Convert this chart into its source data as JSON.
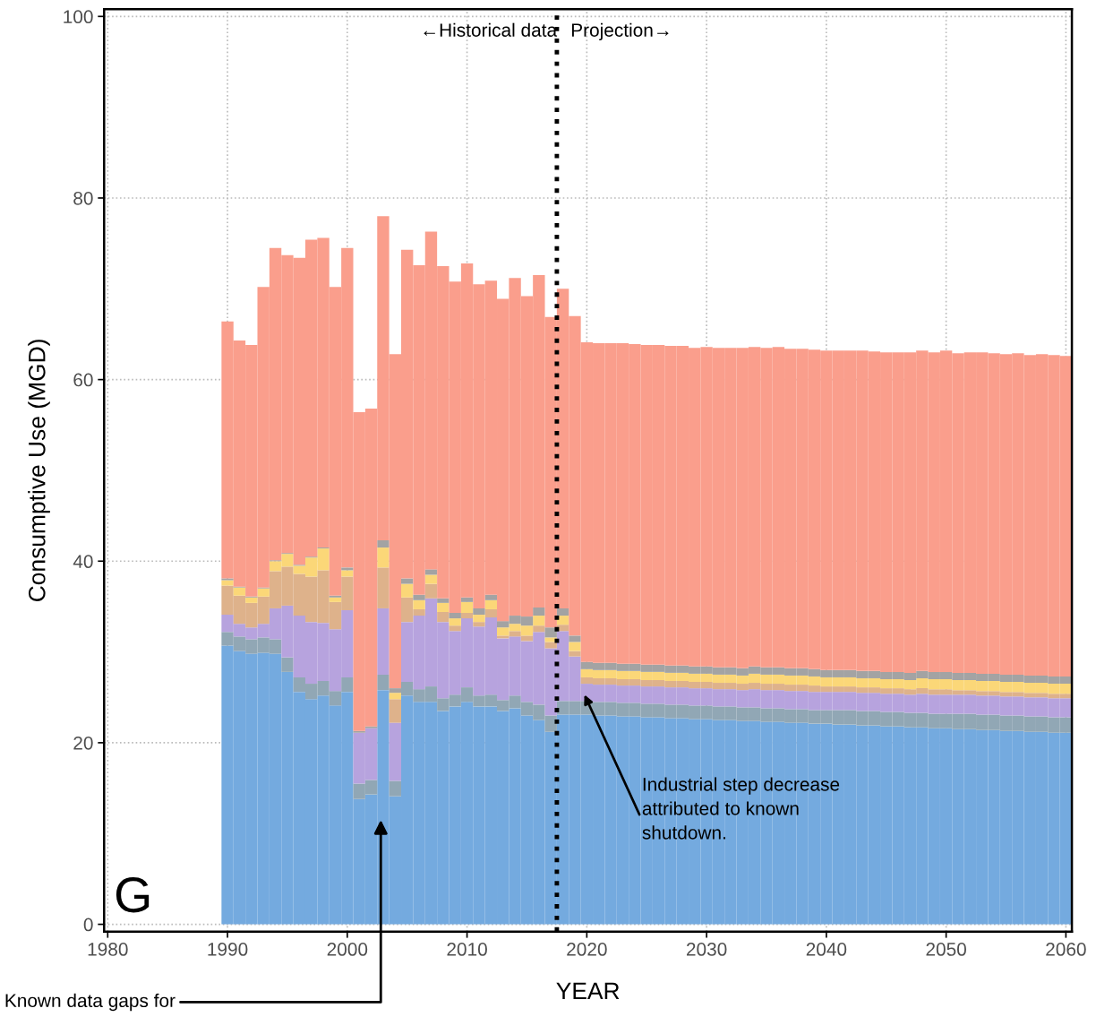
{
  "chart_data": {
    "type": "bar",
    "stacked": true,
    "xlabel": "YEAR",
    "ylabel": "Consumptive Use (MGD)",
    "x": [
      1990,
      1991,
      1992,
      1993,
      1994,
      1995,
      1996,
      1997,
      1998,
      1999,
      2000,
      2001,
      2002,
      2003,
      2004,
      2005,
      2006,
      2007,
      2008,
      2009,
      2010,
      2011,
      2012,
      2013,
      2014,
      2015,
      2016,
      2017,
      2018,
      2019,
      2020,
      2021,
      2022,
      2023,
      2024,
      2025,
      2026,
      2027,
      2028,
      2029,
      2030,
      2031,
      2032,
      2033,
      2034,
      2035,
      2036,
      2037,
      2038,
      2039,
      2040,
      2041,
      2042,
      2043,
      2044,
      2045,
      2046,
      2047,
      2048,
      2049,
      2050,
      2051,
      2052,
      2053,
      2054,
      2055,
      2056,
      2057,
      2058,
      2059,
      2060
    ],
    "series": [
      {
        "color": "#74aadf",
        "values": [
          30.7,
          30.1,
          29.8,
          29.9,
          29.8,
          27.8,
          25.6,
          24.8,
          25.2,
          24.1,
          25.6,
          13.8,
          14.3,
          25.8,
          14.1,
          25.2,
          24.5,
          24.5,
          23.5,
          24.0,
          24.5,
          24.0,
          24.0,
          23.5,
          23.8,
          23.0,
          22.5,
          21.2,
          23.1,
          23.1,
          23.1,
          23.0,
          23.0,
          22.9,
          22.9,
          22.8,
          22.8,
          22.7,
          22.7,
          22.6,
          22.6,
          22.5,
          22.5,
          22.4,
          22.4,
          22.3,
          22.3,
          22.2,
          22.2,
          22.1,
          22.1,
          22.0,
          22.0,
          21.9,
          21.9,
          21.8,
          21.8,
          21.7,
          21.7,
          21.6,
          21.6,
          21.5,
          21.5,
          21.4,
          21.4,
          21.3,
          21.3,
          21.2,
          21.2,
          21.1,
          21.1
        ]
      },
      {
        "color": "#91a7b5",
        "values": [
          1.5,
          1.6,
          1.6,
          1.7,
          1.6,
          1.6,
          1.6,
          1.7,
          1.6,
          1.6,
          1.6,
          1.7,
          1.6,
          1.7,
          1.7,
          1.5,
          1.4,
          1.7,
          1.4,
          1.3,
          1.6,
          1.2,
          1.3,
          1.2,
          1.4,
          1.5,
          1.7,
          1.8,
          1.5,
          1.5,
          1.5,
          1.5,
          1.5,
          1.5,
          1.5,
          1.5,
          1.5,
          1.5,
          1.5,
          1.5,
          1.5,
          1.5,
          1.5,
          1.5,
          1.5,
          1.5,
          1.5,
          1.5,
          1.5,
          1.5,
          1.5,
          1.6,
          1.6,
          1.6,
          1.6,
          1.6,
          1.6,
          1.6,
          1.6,
          1.6,
          1.6,
          1.7,
          1.7,
          1.7,
          1.7,
          1.7,
          1.7,
          1.7,
          1.7,
          1.7,
          1.7
        ]
      },
      {
        "color": "#b7a3de",
        "values": [
          1.9,
          1.4,
          1.3,
          1.5,
          3.4,
          5.7,
          6.8,
          6.8,
          6.4,
          6.8,
          7.4,
          5.6,
          5.7,
          7.3,
          6.4,
          6.6,
          8.1,
          9.7,
          8.4,
          7.0,
          7.6,
          7.6,
          8.5,
          6.8,
          6.5,
          6.7,
          8.0,
          7.4,
          7.7,
          4.9,
          1.9,
          1.9,
          1.9,
          1.9,
          1.9,
          1.9,
          1.9,
          1.9,
          1.9,
          1.9,
          1.9,
          1.9,
          1.9,
          1.9,
          2.0,
          2.0,
          2.0,
          2.0,
          2.0,
          2.0,
          2.0,
          2.0,
          2.0,
          2.0,
          2.0,
          2.0,
          2.0,
          2.0,
          2.1,
          2.1,
          2.1,
          2.1,
          2.1,
          2.1,
          2.1,
          2.1,
          2.1,
          2.1,
          2.1,
          2.1,
          2.1
        ]
      },
      {
        "color": "#deb28b",
        "values": [
          3.2,
          3.1,
          2.7,
          3.0,
          4.1,
          4.3,
          4.6,
          5.0,
          5.8,
          3.0,
          3.7,
          0,
          0,
          4.5,
          2.6,
          2.7,
          0.7,
          1.6,
          1.1,
          0.6,
          0.6,
          0.5,
          0.9,
          0.3,
          0.6,
          0.6,
          0.7,
          0.7,
          0.7,
          0.6,
          0.7,
          0.7,
          0.7,
          0.7,
          0.7,
          0.7,
          0.7,
          0.7,
          0.7,
          0.7,
          0.7,
          0.7,
          0.7,
          0.7,
          0.7,
          0.7,
          0.7,
          0.7,
          0.7,
          0.7,
          0.6,
          0.6,
          0.6,
          0.6,
          0.6,
          0.6,
          0.6,
          0.6,
          0.6,
          0.6,
          0.6,
          0.5,
          0.5,
          0.5,
          0.5,
          0.5,
          0.5,
          0.5,
          0.5,
          0.5,
          0.5
        ]
      },
      {
        "color": "#fbd778",
        "values": [
          0.6,
          0.9,
          0.6,
          0.9,
          1.1,
          1.4,
          0.9,
          2.1,
          2.4,
          0.5,
          0.7,
          0,
          0,
          2.2,
          0.7,
          1.5,
          1.0,
          1.0,
          1.0,
          0.8,
          1.2,
          0.8,
          1.0,
          0.9,
          0.8,
          1.1,
          1.1,
          0.5,
          1.0,
          1.0,
          0.9,
          0.9,
          0.9,
          0.9,
          0.9,
          0.9,
          0.9,
          0.9,
          0.9,
          0.9,
          0.9,
          0.9,
          0.9,
          0.9,
          1.0,
          1.0,
          1.0,
          1.0,
          1.0,
          1.0,
          1.0,
          1.0,
          1.0,
          1.0,
          1.0,
          1.0,
          1.0,
          1.0,
          1.1,
          1.1,
          1.1,
          1.1,
          1.1,
          1.1,
          1.1,
          1.1,
          1.1,
          1.1,
          1.1,
          1.1,
          1.1
        ]
      },
      {
        "color": "#a3a3a3",
        "values": [
          0.2,
          0.1,
          0.1,
          0.1,
          0.1,
          0.1,
          0.1,
          0.1,
          0.1,
          0.2,
          0.3,
          0.2,
          0.2,
          0.8,
          0.5,
          0.6,
          0.6,
          0.6,
          0.5,
          0.6,
          0.5,
          0.7,
          0.6,
          0.7,
          0.9,
          1.0,
          0.9,
          1.1,
          0.8,
          0.7,
          0.8,
          0.8,
          0.8,
          0.8,
          0.8,
          0.8,
          0.8,
          0.8,
          0.8,
          0.8,
          0.8,
          0.8,
          0.8,
          0.8,
          0.8,
          0.8,
          0.8,
          0.8,
          0.8,
          0.8,
          0.8,
          0.8,
          0.8,
          0.8,
          0.8,
          0.8,
          0.8,
          0.8,
          0.8,
          0.8,
          0.8,
          0.8,
          0.8,
          0.8,
          0.8,
          0.8,
          0.8,
          0.8,
          0.8,
          0.8,
          0.8
        ]
      },
      {
        "color": "#fa9e8c",
        "values": [
          28.3,
          27.1,
          27.7,
          33.1,
          34.4,
          32.8,
          33.8,
          34.9,
          34.1,
          34.0,
          35.2,
          35.1,
          35.0,
          35.7,
          36.8,
          36.2,
          36.3,
          37.2,
          36.6,
          36.5,
          36.8,
          35.7,
          34.6,
          35.5,
          37.2,
          35.3,
          36.6,
          34.2,
          35.2,
          35.2,
          35.2,
          35.2,
          35.2,
          35.3,
          35.2,
          35.2,
          35.2,
          35.2,
          35.2,
          35.1,
          35.2,
          35.2,
          35.2,
          35.3,
          35.2,
          35.2,
          35.3,
          35.2,
          35.2,
          35.2,
          35.2,
          35.2,
          35.2,
          35.3,
          35.2,
          35.2,
          35.2,
          35.3,
          35.3,
          35.2,
          35.4,
          35.2,
          35.3,
          35.4,
          35.3,
          35.3,
          35.4,
          35.3,
          35.4,
          35.4,
          35.3
        ]
      }
    ],
    "xlim": [
      1979.7,
      2060.5
    ],
    "ylim": [
      -0.8,
      100.8
    ],
    "xticks": [
      1980,
      1990,
      2000,
      2010,
      2020,
      2030,
      2040,
      2050,
      2060
    ],
    "yticks": [
      0,
      20,
      40,
      60,
      80,
      100
    ],
    "grid": true,
    "ref_lines": [
      {
        "axis": "x",
        "value": 2017.5,
        "line_style": "dotted",
        "color": "#000000"
      }
    ],
    "annotations": [
      "←Historical data",
      "Projection→",
      "G",
      {
        "text": "Industrial step decrease\nattributed to known\nshutdown.",
        "x": 2019.8,
        "y": 25.3
      },
      {
        "text": "Known data gaps for",
        "x": 2002.8,
        "y": 11.5
      }
    ]
  }
}
